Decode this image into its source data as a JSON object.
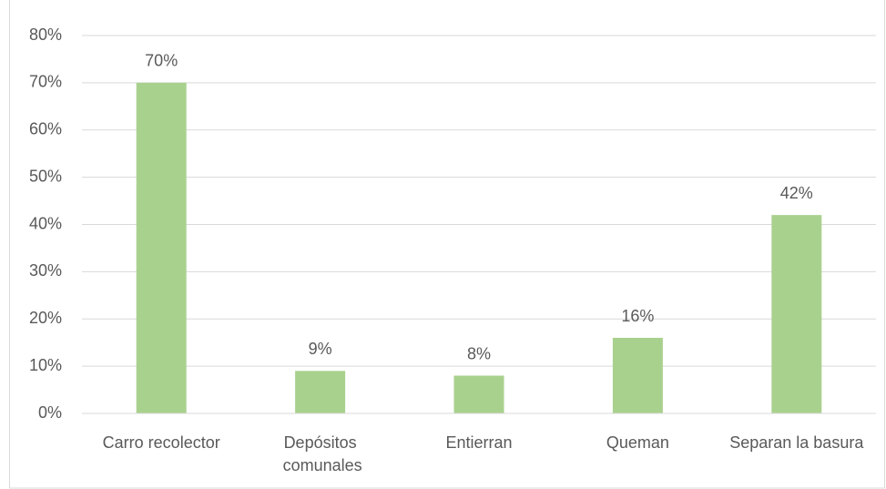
{
  "chart_data": {
    "type": "bar",
    "categories": [
      "Carro recolector",
      "Depósitos comunales",
      "Entierran",
      "Queman",
      "Separan la basura"
    ],
    "values": [
      70,
      9,
      8,
      16,
      42
    ],
    "value_labels": [
      "70%",
      "9%",
      "8%",
      "16%",
      "42%"
    ],
    "color": "#a9d18e",
    "ylim": [
      0,
      80
    ],
    "yticks": [
      {
        "value": 0,
        "label": "0%"
      },
      {
        "value": 10,
        "label": "10%"
      },
      {
        "value": 20,
        "label": "20%"
      },
      {
        "value": 30,
        "label": "30%"
      },
      {
        "value": 40,
        "label": "40%"
      },
      {
        "value": 50,
        "label": "50%"
      },
      {
        "value": 60,
        "label": "60%"
      },
      {
        "value": 70,
        "label": "70%"
      },
      {
        "value": 80,
        "label": "80%"
      }
    ],
    "grid": true
  }
}
